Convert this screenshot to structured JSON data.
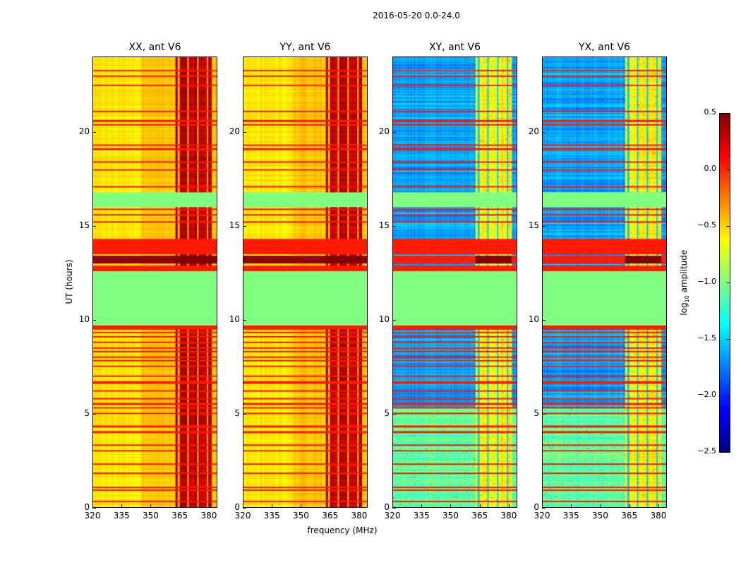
{
  "suptitle": "2016-05-20 0.0-24.0",
  "chart_data": {
    "type": "heatmap",
    "xlabel": "frequency (MHz)",
    "ylabel": "UT (hours)",
    "xlim": [
      320,
      384.4
    ],
    "ylim": [
      0,
      24
    ],
    "xticks": [
      320,
      335,
      350,
      365,
      380
    ],
    "yticks": [
      0,
      5,
      10,
      15,
      20
    ],
    "colorbar": {
      "label_main": "log",
      "label_sub": "10",
      "label_rest": " amplitude",
      "range": [
        -2.5,
        0.5
      ],
      "ticks": [
        "0.5",
        "0.0",
        "−0.5",
        "−1.0",
        "−1.5",
        "−2.0",
        "−2.5"
      ],
      "tick_values": [
        0.5,
        0.0,
        -0.5,
        -1.0,
        -1.5,
        -2.0,
        -2.5
      ],
      "colormap": "jet"
    },
    "flagged_value": -1.0,
    "flagged_intervals_hours": [
      [
        9.7,
        12.6
      ],
      [
        16.0,
        16.8
      ]
    ],
    "orange_blocks_hours": [
      [
        9.45,
        9.7
      ],
      [
        12.6,
        12.9
      ],
      [
        13.5,
        14.3
      ]
    ],
    "dark_band_hours": [
      13.0,
      13.4
    ],
    "rfi_band_mhz": [
      363,
      382
    ],
    "line_times_hours": [
      0.3,
      0.9,
      1.05,
      1.8,
      2.3,
      3.0,
      3.3,
      4.0,
      4.3,
      5.0,
      5.3,
      5.5,
      5.8,
      6.2,
      6.6,
      6.7,
      7.0,
      7.5,
      7.8,
      8.0,
      8.3,
      8.5,
      8.8,
      9.1,
      9.3,
      15.2,
      15.6,
      15.9,
      17.1,
      18.0,
      18.4,
      19.1,
      19.3,
      20.4,
      20.6,
      21.1,
      22.5,
      23.0,
      23.3
    ],
    "panels": [
      {
        "title": "XX, ant V6",
        "base_level": -0.55,
        "low_time_level": -0.55,
        "rfi_level": 0.15
      },
      {
        "title": "YY, ant V6",
        "base_level": -0.55,
        "low_time_level": -0.55,
        "rfi_level": 0.15
      },
      {
        "title": "XY, ant V6",
        "base_level": -1.75,
        "low_time_level": -1.2,
        "rfi_level": -0.8
      },
      {
        "title": "YX, ant V6",
        "base_level": -1.75,
        "low_time_level": -1.2,
        "rfi_level": -0.8
      }
    ]
  }
}
